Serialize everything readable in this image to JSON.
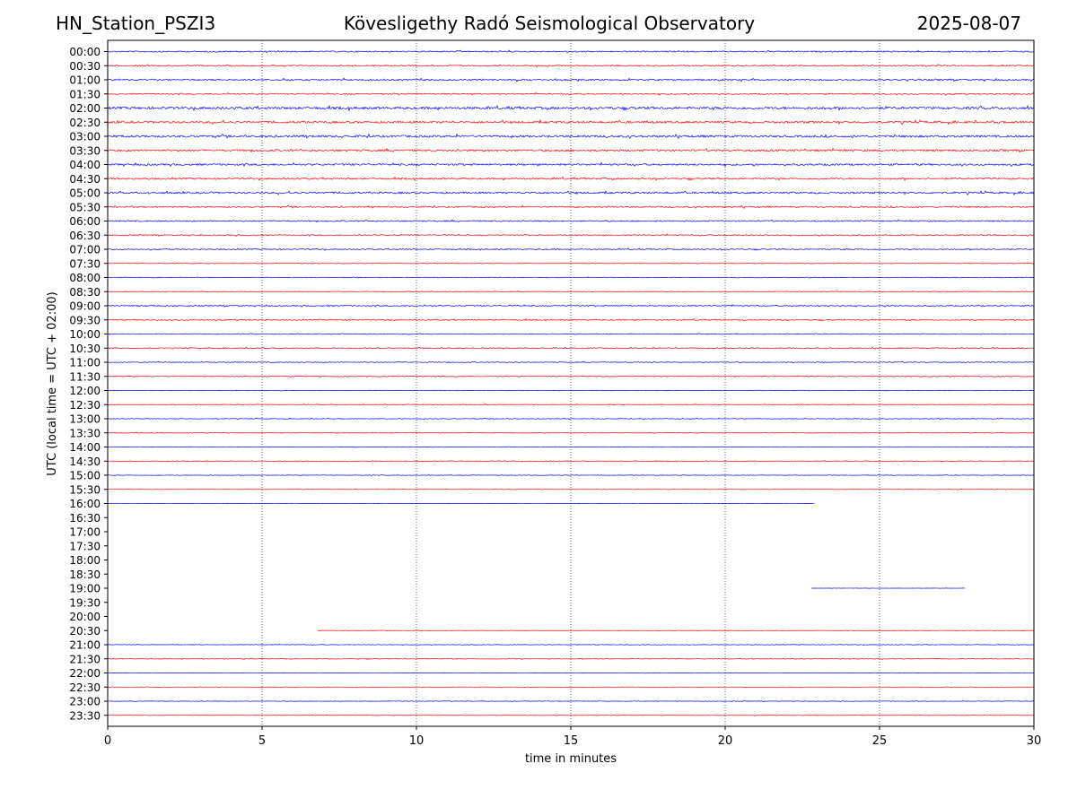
{
  "header": {
    "station": "HN_Station_PSZI3",
    "observatory": "Kövesligethy Radó Seismological Observatory",
    "date": "2025-08-07"
  },
  "chart_data": {
    "type": "line",
    "title": "Kövesligethy Radó Seismological Observatory",
    "xlabel": "time in minutes",
    "ylabel": "UTC (local time = UTC + 02:00)",
    "xlim": [
      0,
      30
    ],
    "xticks": [
      0,
      5,
      10,
      15,
      20,
      25,
      30
    ],
    "vertical_gridlines": [
      5,
      10,
      15,
      20,
      25
    ],
    "grid": "vertical dotted",
    "rows": [
      "00:00",
      "00:30",
      "01:00",
      "01:30",
      "02:00",
      "02:30",
      "03:00",
      "03:30",
      "04:00",
      "04:30",
      "05:00",
      "05:30",
      "06:00",
      "06:30",
      "07:00",
      "07:30",
      "08:00",
      "08:30",
      "09:00",
      "09:30",
      "10:00",
      "10:30",
      "11:00",
      "11:30",
      "12:00",
      "12:30",
      "13:00",
      "13:30",
      "14:00",
      "14:30",
      "15:00",
      "15:30",
      "16:00",
      "16:30",
      "17:00",
      "17:30",
      "18:00",
      "18:30",
      "19:00",
      "19:30",
      "20:00",
      "20:30",
      "21:00",
      "21:30",
      "22:00",
      "22:30",
      "23:00",
      "23:30"
    ],
    "trace_colors": [
      "#0000ff",
      "#ff0000"
    ],
    "segments": [
      {
        "row": "00:00",
        "x": [
          0,
          30
        ],
        "amplitude": 1.0
      },
      {
        "row": "00:30",
        "x": [
          0,
          30
        ],
        "amplitude": 1.0
      },
      {
        "row": "01:00",
        "x": [
          0,
          30
        ],
        "amplitude": 1.2
      },
      {
        "row": "01:30",
        "x": [
          0,
          30
        ],
        "amplitude": 1.0
      },
      {
        "row": "02:00",
        "x": [
          0,
          30
        ],
        "amplitude": 1.8
      },
      {
        "row": "02:30",
        "x": [
          0,
          30
        ],
        "amplitude": 1.6
      },
      {
        "row": "03:00",
        "x": [
          0,
          30
        ],
        "amplitude": 1.6
      },
      {
        "row": "03:30",
        "x": [
          0,
          30
        ],
        "amplitude": 1.5
      },
      {
        "row": "04:00",
        "x": [
          0,
          30
        ],
        "amplitude": 1.4
      },
      {
        "row": "04:30",
        "x": [
          0,
          30
        ],
        "amplitude": 1.3
      },
      {
        "row": "05:00",
        "x": [
          0,
          30
        ],
        "amplitude": 1.4
      },
      {
        "row": "05:30",
        "x": [
          0,
          30
        ],
        "amplitude": 1.1
      },
      {
        "row": "06:00",
        "x": [
          0,
          30
        ],
        "amplitude": 1.0
      },
      {
        "row": "06:30",
        "x": [
          0,
          30
        ],
        "amplitude": 0.9
      },
      {
        "row": "07:00",
        "x": [
          0,
          30
        ],
        "amplitude": 0.8
      },
      {
        "row": "07:30",
        "x": [
          0,
          30
        ],
        "amplitude": 0.4
      },
      {
        "row": "08:00",
        "x": [
          0,
          30
        ],
        "amplitude": 0.5
      },
      {
        "row": "08:30",
        "x": [
          0,
          30
        ],
        "amplitude": 0.5
      },
      {
        "row": "09:00",
        "x": [
          0,
          30
        ],
        "amplitude": 0.9
      },
      {
        "row": "09:30",
        "x": [
          0,
          30
        ],
        "amplitude": 0.9
      },
      {
        "row": "10:00",
        "x": [
          0,
          30
        ],
        "amplitude": 0.6
      },
      {
        "row": "10:30",
        "x": [
          0,
          30
        ],
        "amplitude": 0.7
      },
      {
        "row": "11:00",
        "x": [
          0,
          30
        ],
        "amplitude": 0.6
      },
      {
        "row": "11:30",
        "x": [
          0,
          30
        ],
        "amplitude": 0.6
      },
      {
        "row": "12:00",
        "x": [
          0,
          30
        ],
        "amplitude": 0.4
      },
      {
        "row": "12:30",
        "x": [
          0,
          30
        ],
        "amplitude": 0.5
      },
      {
        "row": "13:00",
        "x": [
          0,
          30
        ],
        "amplitude": 0.5
      },
      {
        "row": "13:30",
        "x": [
          0,
          30
        ],
        "amplitude": 0.4
      },
      {
        "row": "14:00",
        "x": [
          0,
          30
        ],
        "amplitude": 0.4
      },
      {
        "row": "14:30",
        "x": [
          0,
          30
        ],
        "amplitude": 0.5
      },
      {
        "row": "15:00",
        "x": [
          0,
          30
        ],
        "amplitude": 0.4
      },
      {
        "row": "15:30",
        "x": [
          0,
          30
        ],
        "amplitude": 0.3
      },
      {
        "row": "16:00",
        "x": [
          0,
          22.9
        ],
        "amplitude": 0.3
      },
      {
        "row": "19:00",
        "x": [
          22.8,
          27.8
        ],
        "amplitude": 0.2
      },
      {
        "row": "20:30",
        "x": [
          6.8,
          30
        ],
        "amplitude": 0.3
      },
      {
        "row": "21:00",
        "x": [
          0,
          30
        ],
        "amplitude": 0.4
      },
      {
        "row": "21:30",
        "x": [
          0,
          30
        ],
        "amplitude": 0.5
      },
      {
        "row": "22:00",
        "x": [
          0,
          30
        ],
        "amplitude": 0.3
      },
      {
        "row": "22:30",
        "x": [
          0,
          30
        ],
        "amplitude": 0.3
      },
      {
        "row": "23:00",
        "x": [
          0,
          30
        ],
        "amplitude": 0.4
      },
      {
        "row": "23:30",
        "x": [
          0,
          30
        ],
        "amplitude": 0.3
      }
    ]
  }
}
